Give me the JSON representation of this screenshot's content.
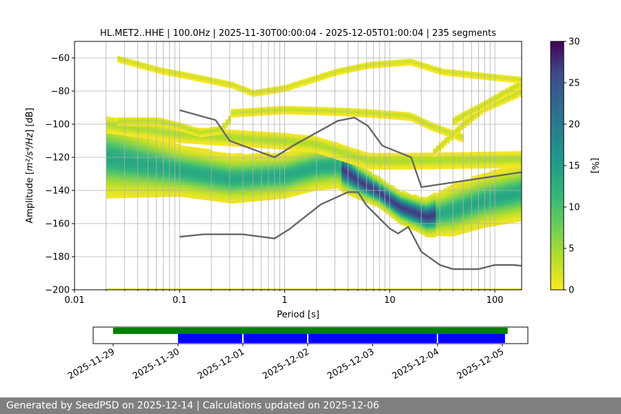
{
  "chart_data": [
    {
      "type": "heatmap",
      "title": "HL.MET2..HHE | 100.0Hz | 2025-11-30T00:00:04 - 2025-12-05T01:00:04 | 235 segments",
      "xlabel": "Period [s]",
      "ylabel_main": "Amplitude [",
      "ylabel_math": "m²/s⁴/Hz",
      "ylabel_end": "] [dB]",
      "xscale": "log",
      "xlim": [
        0.01,
        180
      ],
      "ylim": [
        -200,
        -50
      ],
      "xticks": [
        0.01,
        0.1,
        1,
        10,
        100
      ],
      "xtick_labels": [
        "0.01",
        "0.1",
        "1",
        "10",
        "100"
      ],
      "yticks": [
        -200,
        -180,
        -160,
        -140,
        -120,
        -100,
        -80,
        -60
      ],
      "ytick_labels": [
        "−200",
        "−180",
        "−160",
        "−140",
        "−120",
        "−100",
        "−80",
        "−60"
      ],
      "grid": true,
      "colorbar": {
        "label": "[%]",
        "range": [
          0,
          30
        ],
        "ticks": [
          0,
          5,
          10,
          15,
          20,
          25,
          30
        ],
        "tick_labels": [
          "0",
          "5",
          "10",
          "15",
          "20",
          "25",
          "30"
        ],
        "colormap": "viridis_r"
      },
      "series": [
        {
          "name": "",
          "style": "line",
          "color": "#666666",
          "x": [
            0.1,
            0.22,
            0.3,
            0.8,
            1.2,
            3.2,
            4.6,
            6.2,
            8.5,
            16,
            20,
            180
          ],
          "y": [
            -91.5,
            -97.5,
            -110,
            -120,
            -113,
            -98,
            -96,
            -101,
            -113,
            -120,
            -138,
            -129
          ]
        },
        {
          "name": "",
          "style": "line",
          "color": "#666666",
          "x": [
            0.1,
            0.17,
            0.4,
            0.8,
            1.1,
            2.2,
            4,
            5,
            6,
            10,
            12,
            15,
            20,
            30,
            40,
            70,
            100,
            150,
            180
          ],
          "y": [
            -168,
            -166.5,
            -166.5,
            -169,
            -163.5,
            -148.5,
            -141,
            -141,
            -149,
            -163,
            -166,
            -162,
            -177,
            -185,
            -187.5,
            -187.5,
            -185,
            -185,
            -185.5
          ]
        }
      ]
    },
    {
      "type": "timeline",
      "x_tick_labels": [
        "2025-11-29",
        "2025-11-30",
        "2025-12-01",
        "2025-12-02",
        "2025-12-03",
        "2025-12-04",
        "2025-12-05"
      ],
      "series": [
        {
          "name": "",
          "color": "#008000",
          "start": "2025-11-29",
          "end": "2025-12-05 02:00"
        },
        {
          "name": "",
          "color": "#0000ff",
          "start": "2025-11-30",
          "end": "2025-12-05 01:00",
          "gaps": [
            "2025-12-01",
            "2025-12-02",
            "2025-12-04"
          ]
        }
      ]
    }
  ],
  "footer": {
    "text": "Generated by SeedPSD on 2025-12-14 | Calculations updated on 2025-12-06"
  }
}
